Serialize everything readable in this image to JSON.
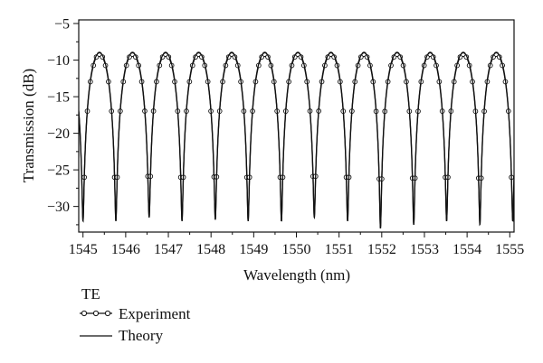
{
  "chart_data": {
    "type": "line",
    "title": "",
    "xlabel": "Wavelength (nm)",
    "ylabel": "Transmission (dB)",
    "xlim": [
      1544.9,
      1555.1
    ],
    "ylim": [
      -33.5,
      -4.5
    ],
    "x_ticks": [
      1545,
      1546,
      1547,
      1548,
      1549,
      1550,
      1551,
      1552,
      1553,
      1554,
      1555
    ],
    "y_ticks": [
      -5,
      -10,
      -15,
      -20,
      -25,
      -30
    ],
    "grid": false,
    "legend": {
      "title": "TE",
      "position": "bottom-left"
    },
    "series": [
      {
        "name": "Experiment",
        "style": "line-with-open-circles",
        "min_x": [
          1545.0,
          1545.77,
          1546.55,
          1547.32,
          1548.1,
          1548.87,
          1549.65,
          1550.42,
          1551.2,
          1551.97,
          1552.75,
          1553.52,
          1554.3,
          1555.07
        ],
        "max_y": -9.2,
        "min_y": [
          -32.0,
          -32.0,
          -31.5,
          -32.0,
          -31.8,
          -32.0,
          -32.0,
          -31.5,
          -32.0,
          -33.0,
          -32.5,
          -32.0,
          -32.5,
          -32.0
        ]
      },
      {
        "name": "Theory",
        "style": "solid-line",
        "min_x": [
          1545.0,
          1545.77,
          1546.55,
          1547.32,
          1548.1,
          1548.87,
          1549.65,
          1550.42,
          1551.2,
          1551.97,
          1552.75,
          1553.52,
          1554.3,
          1555.07
        ],
        "max_y": -9.0,
        "min_y": [
          -32.0,
          -32.0,
          -31.5,
          -32.0,
          -31.8,
          -32.0,
          -32.0,
          -31.5,
          -32.0,
          -33.0,
          -32.5,
          -32.0,
          -32.5,
          -32.0
        ]
      }
    ]
  },
  "legend": {
    "title": "TE",
    "items": [
      {
        "label": "Experiment"
      },
      {
        "label": "Theory"
      }
    ]
  }
}
